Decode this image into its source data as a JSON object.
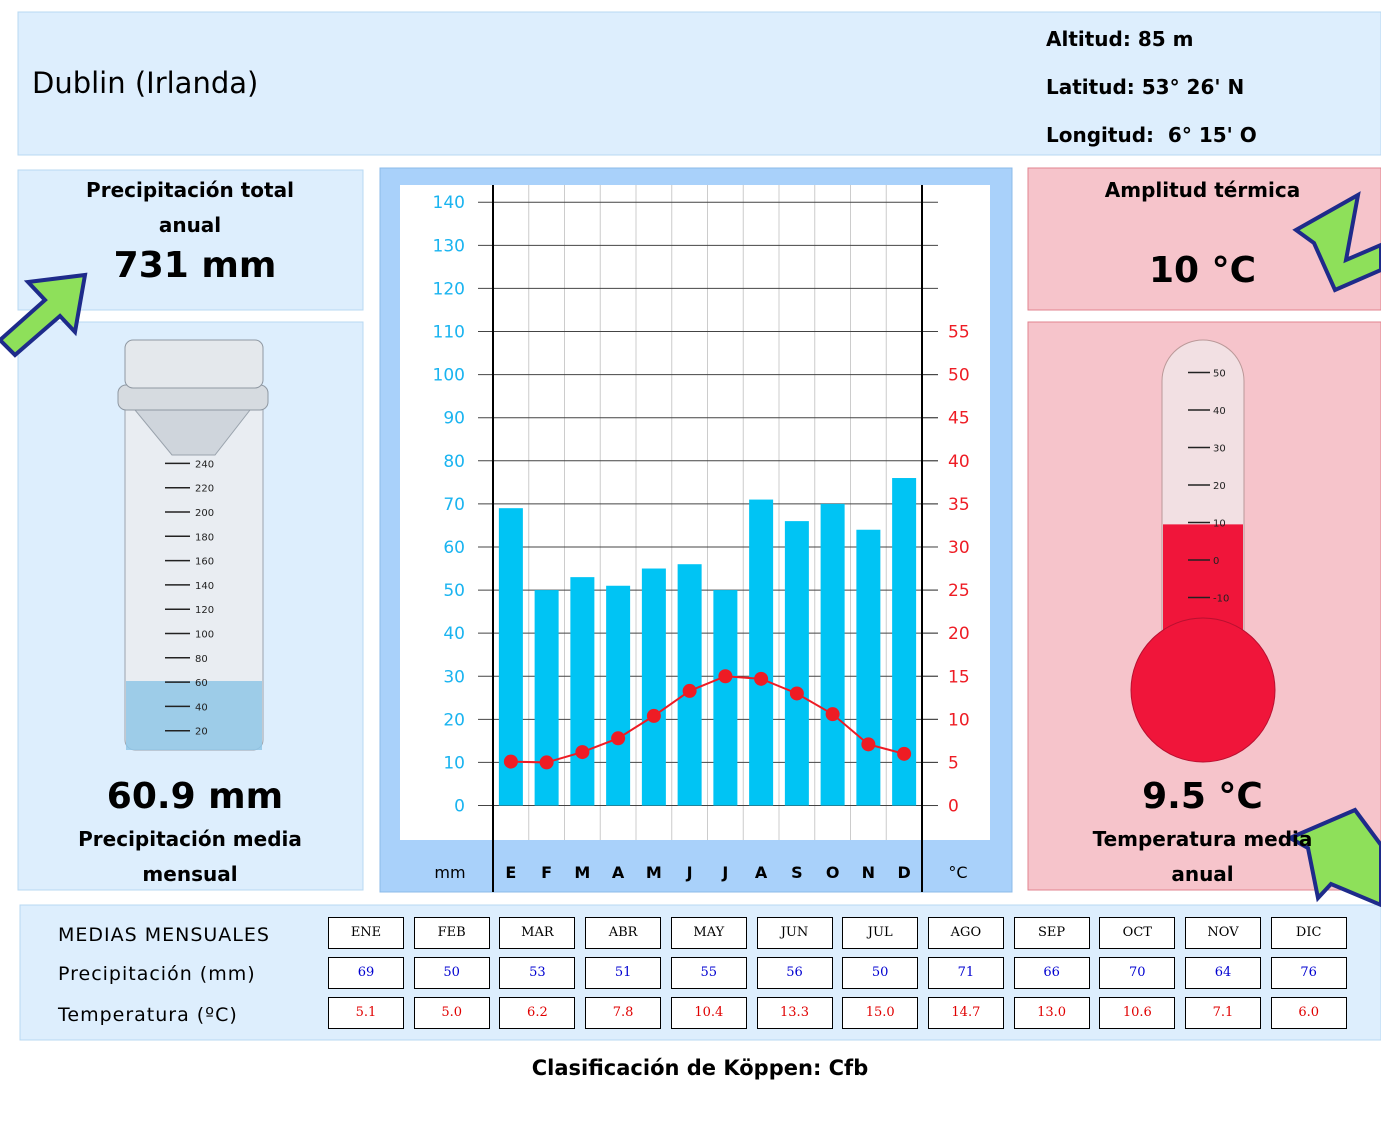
{
  "header": {
    "title": "Dublin (Irlanda)",
    "altitude": "Altitud: 85 m",
    "latitude": "Latitud: 53° 26' N",
    "longitude": "Longitud:  6° 15' O"
  },
  "precip_total": {
    "label": "Precipitación total anual",
    "value": "731 mm"
  },
  "precip_mean": {
    "value": {
      "value": 60.9,
      "label": "60.9 mm"
    },
    "label": "Precipitación media mensual",
    "gauge_ticks": [
      20,
      40,
      60,
      80,
      100,
      120,
      140,
      160,
      180,
      200,
      220,
      240
    ]
  },
  "amplitude": {
    "label": "Amplitud térmica",
    "value": "10 °C"
  },
  "temp_mean": {
    "value": {
      "value": 9.5,
      "label": "9.5 °C"
    },
    "label": "Temperatura media anual",
    "thermo_ticks": [
      -10,
      0,
      10,
      20,
      30,
      40,
      50
    ]
  },
  "chart_data": {
    "type": "bar",
    "categories": [
      "E",
      "F",
      "M",
      "A",
      "M",
      "J",
      "J",
      "A",
      "S",
      "O",
      "N",
      "D"
    ],
    "y_label": "mm",
    "y2_label": "°C",
    "ylim": [
      -8,
      144
    ],
    "yticks": [
      0,
      10,
      20,
      30,
      40,
      50,
      60,
      70,
      80,
      90,
      100,
      110,
      120,
      130,
      140
    ],
    "y2lim": [
      -4,
      72
    ],
    "y2ticks": [
      0,
      5,
      10,
      15,
      20,
      25,
      30,
      35,
      40,
      45,
      50,
      55
    ],
    "grid": true,
    "series": [
      {
        "name": "Precipitación (mm)",
        "type": "bar",
        "color": "#00c4f4",
        "values": [
          69,
          50,
          53,
          51,
          55,
          56,
          50,
          71,
          66,
          70,
          64,
          76
        ]
      },
      {
        "name": "Temperatura (ºC)",
        "type": "line",
        "axis": "y2",
        "color": "#ee1c24",
        "values": [
          5.1,
          5.0,
          6.2,
          7.8,
          10.4,
          13.3,
          15.0,
          14.7,
          13.0,
          10.6,
          7.1,
          6.0
        ],
        "value_labels": [
          "5.1",
          "5.0",
          "6.2",
          "7.8",
          "10.4",
          "13.3",
          "15.0",
          "14.7",
          "13.0",
          "10.6",
          "7.1",
          "6.0"
        ]
      }
    ]
  },
  "table": {
    "title": "MEDIAS MENSUALES",
    "months": [
      "ENE",
      "FEB",
      "MAR",
      "ABR",
      "MAY",
      "JUN",
      "JUL",
      "AGO",
      "SEP",
      "OCT",
      "NOV",
      "DIC"
    ]
  },
  "footer": "Clasificación de Köppen: Cfb"
}
